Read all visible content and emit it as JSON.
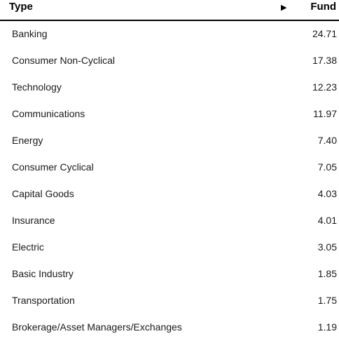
{
  "table": {
    "header": {
      "type_label": "Type",
      "sort_arrow": "▶",
      "fund_label": "Fund"
    },
    "rows": [
      {
        "label": "Banking",
        "value": "24.71"
      },
      {
        "label": "Consumer Non-Cyclical",
        "value": "17.38"
      },
      {
        "label": "Technology",
        "value": "12.23"
      },
      {
        "label": "Communications",
        "value": "11.97"
      },
      {
        "label": "Energy",
        "value": "7.40"
      },
      {
        "label": "Consumer Cyclical",
        "value": "7.05"
      },
      {
        "label": "Capital Goods",
        "value": "4.03"
      },
      {
        "label": "Insurance",
        "value": "4.01"
      },
      {
        "label": "Electric",
        "value": "3.05"
      },
      {
        "label": "Basic Industry",
        "value": "1.85"
      },
      {
        "label": "Transportation",
        "value": "1.75"
      },
      {
        "label": "Brokerage/Asset Managers/Exchanges",
        "value": "1.19"
      }
    ]
  },
  "colors": {
    "header_text": "#000000",
    "body_text": "#1a1a1a",
    "header_rule": "#000000",
    "background": "#ffffff"
  },
  "icons": {
    "sort_arrow": "play-right-icon"
  }
}
